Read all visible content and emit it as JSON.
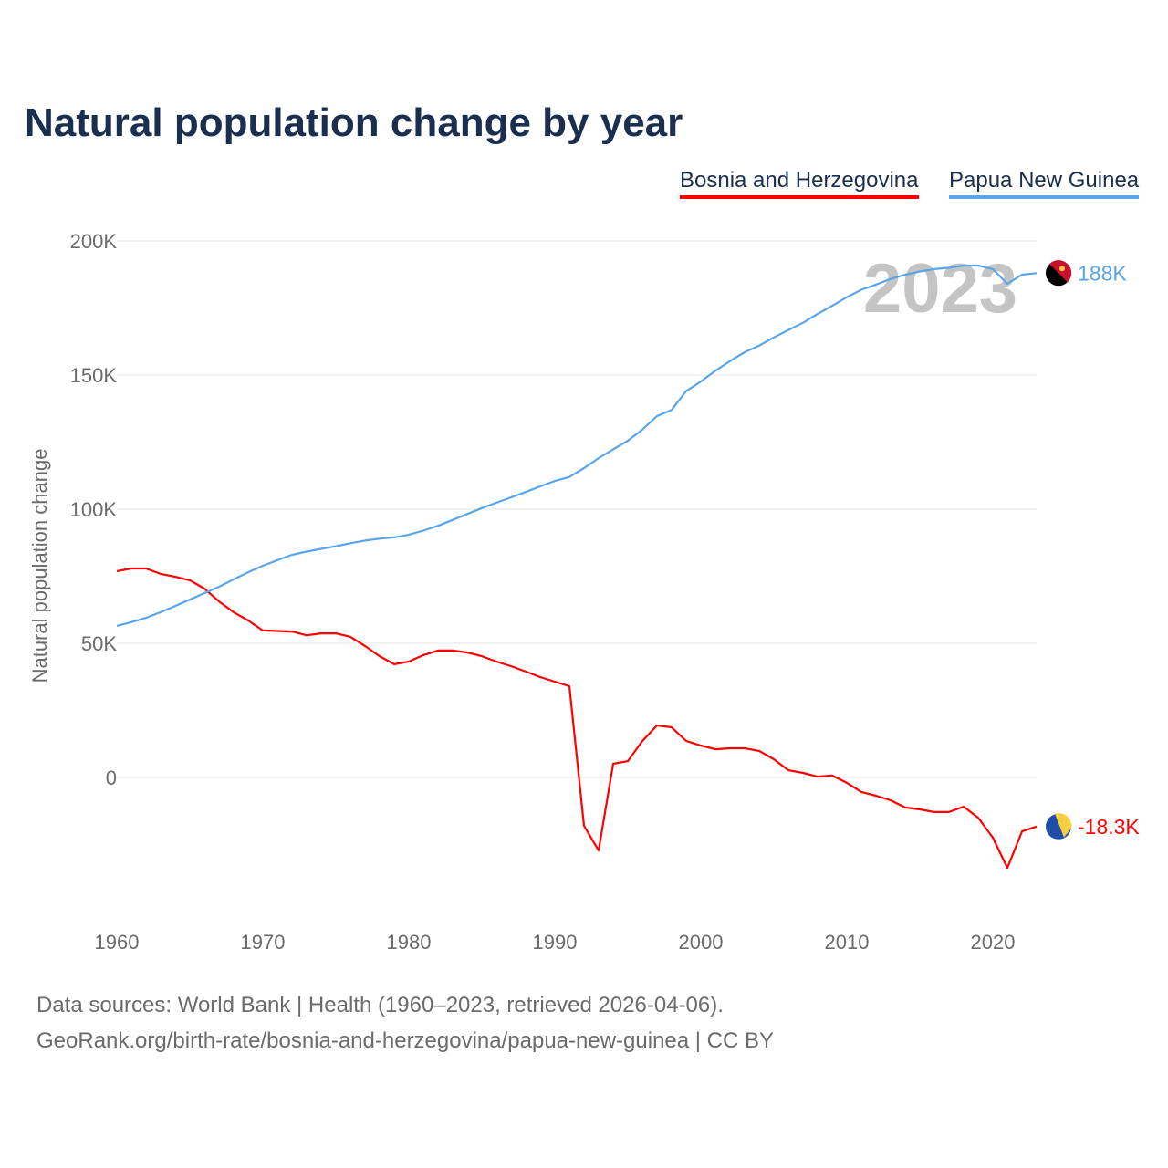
{
  "chart_data": {
    "type": "line",
    "title": "Natural population change by year",
    "xlabel": "",
    "ylabel": "Natural population change",
    "xlim": [
      1960,
      2023
    ],
    "ylim": [
      -40000,
      200000
    ],
    "x_ticks": [
      1960,
      1970,
      1980,
      1990,
      2000,
      2010,
      2020
    ],
    "x_tick_labels": [
      "1960",
      "1970",
      "1980",
      "1990",
      "2000",
      "2010",
      "2020"
    ],
    "y_ticks": [
      0,
      50000,
      100000,
      150000,
      200000
    ],
    "y_tick_labels": [
      "0",
      "50K",
      "100K",
      "150K",
      "200K"
    ],
    "grid": true,
    "legend_position": "top-right",
    "year_label": "2023",
    "x": [
      1960,
      1961,
      1962,
      1963,
      1964,
      1965,
      1966,
      1967,
      1968,
      1969,
      1970,
      1971,
      1972,
      1973,
      1974,
      1975,
      1976,
      1977,
      1978,
      1979,
      1980,
      1981,
      1982,
      1983,
      1984,
      1985,
      1986,
      1987,
      1988,
      1989,
      1990,
      1991,
      1992,
      1993,
      1994,
      1995,
      1996,
      1997,
      1998,
      1999,
      2000,
      2001,
      2002,
      2003,
      2004,
      2005,
      2006,
      2007,
      2008,
      2009,
      2010,
      2011,
      2012,
      2013,
      2014,
      2015,
      2016,
      2017,
      2018,
      2019,
      2020,
      2021,
      2022,
      2023
    ],
    "series": [
      {
        "name": "Bosnia and Herzegovina",
        "color": "#ff0000",
        "end_label": "-18.3K",
        "values": [
          76900,
          77900,
          77900,
          75900,
          74800,
          73500,
          70400,
          65600,
          61600,
          58500,
          54800,
          54600,
          54400,
          53000,
          53700,
          53700,
          52400,
          49000,
          45200,
          42200,
          43200,
          45600,
          47300,
          47300,
          46600,
          45200,
          43200,
          41500,
          39500,
          37400,
          35700,
          34000,
          -18000,
          -27200,
          5100,
          6100,
          13600,
          19400,
          18700,
          13600,
          11900,
          10500,
          10900,
          10900,
          9900,
          6800,
          2700,
          1700,
          300,
          700,
          -2000,
          -5400,
          -6800,
          -8500,
          -11200,
          -11900,
          -12900,
          -12900,
          -10900,
          -15000,
          -22400,
          -33700,
          -20100,
          -18300
        ]
      },
      {
        "name": "Papua New Guinea",
        "color": "#5aa5ea",
        "end_label": "188K",
        "values": [
          56500,
          57900,
          59500,
          61600,
          63900,
          66300,
          68700,
          71100,
          73800,
          76500,
          78900,
          81000,
          83000,
          84200,
          85200,
          86200,
          87300,
          88300,
          89000,
          89500,
          90500,
          92000,
          93800,
          96000,
          98200,
          100400,
          102400,
          104400,
          106400,
          108500,
          110500,
          112000,
          115300,
          119000,
          122300,
          125500,
          129700,
          134700,
          137000,
          144000,
          147600,
          151600,
          155200,
          158500,
          161000,
          164000,
          166800,
          169500,
          172800,
          175800,
          179000,
          181800,
          183700,
          185800,
          187400,
          188600,
          189500,
          190000,
          190800,
          190800,
          189500,
          184000,
          187400,
          188000
        ]
      }
    ]
  },
  "footer": {
    "line1": "Data sources: World Bank | Health (1960–2023, retrieved 2026-04-06).",
    "line2": "GeoRank.org/birth-rate/bosnia-and-herzegovina/papua-new-guinea | CC BY"
  }
}
